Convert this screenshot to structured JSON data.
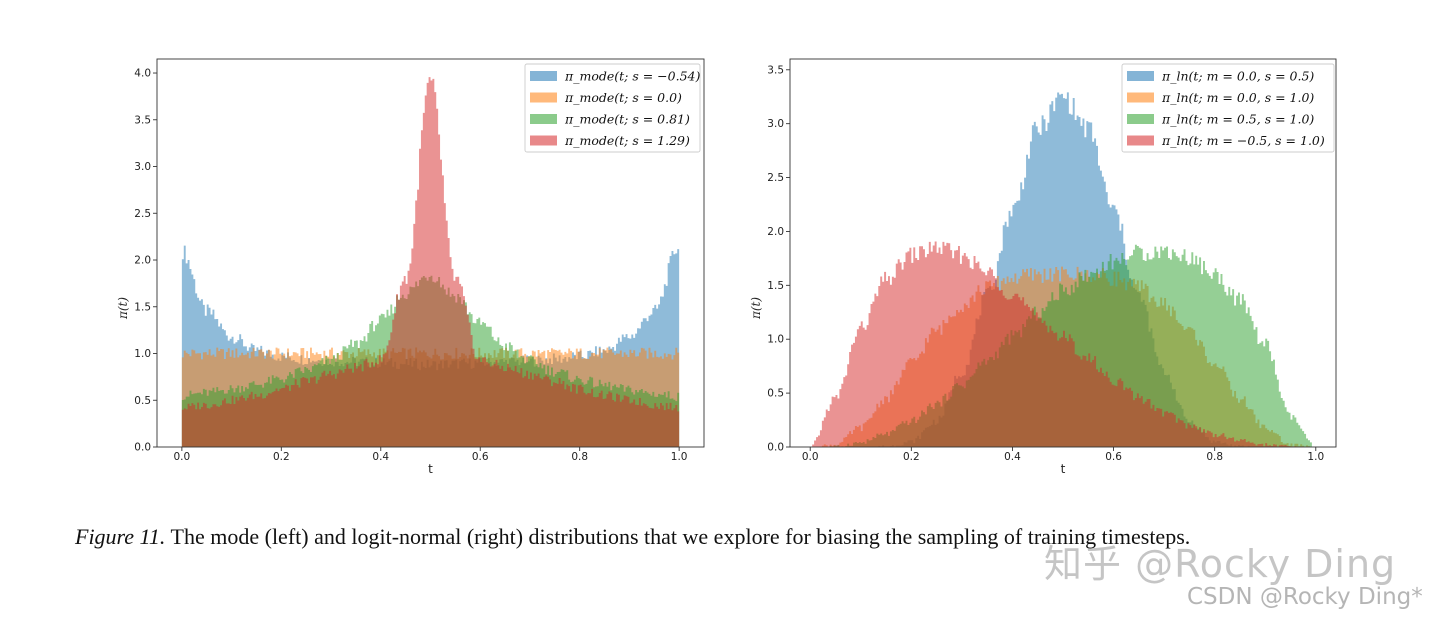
{
  "chart_data": [
    {
      "type": "area",
      "xlabel": "t",
      "ylabel": "π(t)",
      "xlim": [
        -0.05,
        1.05
      ],
      "ylim": [
        0,
        4.15
      ],
      "xticks": [
        "0.0",
        "0.2",
        "0.4",
        "0.6",
        "0.8",
        "1.0"
      ],
      "yticks": [
        "0.0",
        "0.5",
        "1.0",
        "1.5",
        "2.0",
        "2.5",
        "3.0",
        "3.5",
        "4.0"
      ],
      "legend_position": "top-right",
      "x": [
        0.0,
        0.05,
        0.1,
        0.15,
        0.2,
        0.25,
        0.3,
        0.35,
        0.4,
        0.45,
        0.5,
        0.55,
        0.6,
        0.65,
        0.7,
        0.75,
        0.8,
        0.85,
        0.9,
        0.95,
        1.0
      ],
      "series": [
        {
          "name": "π_mode(t; s = −0.54)",
          "color": "#1f77b4",
          "values": [
            2.1,
            1.45,
            1.18,
            1.03,
            0.97,
            0.94,
            0.92,
            0.91,
            0.9,
            0.89,
            0.88,
            0.89,
            0.9,
            0.91,
            0.92,
            0.94,
            0.97,
            1.03,
            1.18,
            1.45,
            2.15
          ]
        },
        {
          "name": "π_mode(t; s = 0.0)",
          "color": "#ff7f0e",
          "values": [
            1.0,
            1.0,
            1.0,
            1.0,
            1.0,
            1.0,
            1.0,
            1.0,
            1.0,
            1.0,
            1.0,
            1.0,
            1.0,
            1.0,
            1.0,
            1.0,
            1.0,
            1.0,
            1.0,
            1.0,
            1.0
          ]
        },
        {
          "name": "π_mode(t; s = 0.81)",
          "color": "#2ca02c",
          "values": [
            0.55,
            0.58,
            0.62,
            0.67,
            0.73,
            0.82,
            0.93,
            1.1,
            1.35,
            1.65,
            1.85,
            1.62,
            1.32,
            1.08,
            0.92,
            0.81,
            0.72,
            0.66,
            0.61,
            0.57,
            0.54
          ]
        },
        {
          "name": "π_mode(t; s = 1.29)",
          "color": "#d62728",
          "values": [
            0.42,
            0.45,
            0.5,
            0.55,
            0.62,
            0.7,
            0.78,
            0.85,
            0.93,
            1.8,
            3.9,
            1.8,
            0.93,
            0.85,
            0.78,
            0.7,
            0.62,
            0.55,
            0.5,
            0.45,
            0.42
          ]
        }
      ]
    },
    {
      "type": "area",
      "xlabel": "t",
      "ylabel": "π(t)",
      "xlim": [
        -0.04,
        1.04
      ],
      "ylim": [
        0,
        3.6
      ],
      "xticks": [
        "0.0",
        "0.2",
        "0.4",
        "0.6",
        "0.8",
        "1.0"
      ],
      "yticks": [
        "0.0",
        "0.5",
        "1.0",
        "1.5",
        "2.0",
        "2.5",
        "3.0",
        "3.5"
      ],
      "legend_position": "top-right",
      "x": [
        0.0,
        0.05,
        0.1,
        0.15,
        0.2,
        0.25,
        0.3,
        0.35,
        0.4,
        0.45,
        0.5,
        0.55,
        0.6,
        0.65,
        0.7,
        0.75,
        0.8,
        0.85,
        0.9,
        0.95,
        1.0
      ],
      "series": [
        {
          "name": "π_ln(t; m = 0.0, s = 0.5)",
          "color": "#1f77b4",
          "values": [
            0,
            0,
            0,
            0.005,
            0.05,
            0.24,
            0.7,
            1.4,
            2.2,
            2.95,
            3.25,
            2.95,
            2.2,
            1.4,
            0.7,
            0.24,
            0.05,
            0.005,
            0,
            0,
            0
          ]
        },
        {
          "name": "π_ln(t; m = 0.0, s = 1.0)",
          "color": "#ff7f0e",
          "values": [
            0,
            0.02,
            0.18,
            0.45,
            0.78,
            1.08,
            1.32,
            1.48,
            1.57,
            1.6,
            1.6,
            1.6,
            1.57,
            1.48,
            1.32,
            1.08,
            0.78,
            0.45,
            0.18,
            0.02,
            0
          ]
        },
        {
          "name": "π_ln(t; m = 0.5, s = 1.0)",
          "color": "#2ca02c",
          "values": [
            0,
            0.005,
            0.04,
            0.12,
            0.24,
            0.4,
            0.58,
            0.8,
            1.02,
            1.24,
            1.45,
            1.6,
            1.72,
            1.8,
            1.82,
            1.76,
            1.6,
            1.36,
            0.95,
            0.28,
            0
          ]
        },
        {
          "name": "π_ln(t; m = −0.5, s = 1.0)",
          "color": "#d62728",
          "values": [
            0,
            0.45,
            1.1,
            1.55,
            1.78,
            1.85,
            1.78,
            1.62,
            1.42,
            1.2,
            1.02,
            0.82,
            0.62,
            0.46,
            0.32,
            0.2,
            0.12,
            0.06,
            0.02,
            0.005,
            0
          ]
        }
      ]
    }
  ],
  "caption": {
    "label": "Figure 11.",
    "text": " The mode (left) and logit-normal (right) distributions that we explore for biasing the sampling of training timesteps."
  },
  "watermark": {
    "primary": "知乎 @Rocky Ding",
    "secondary": "CSDN @Rocky Ding*"
  }
}
